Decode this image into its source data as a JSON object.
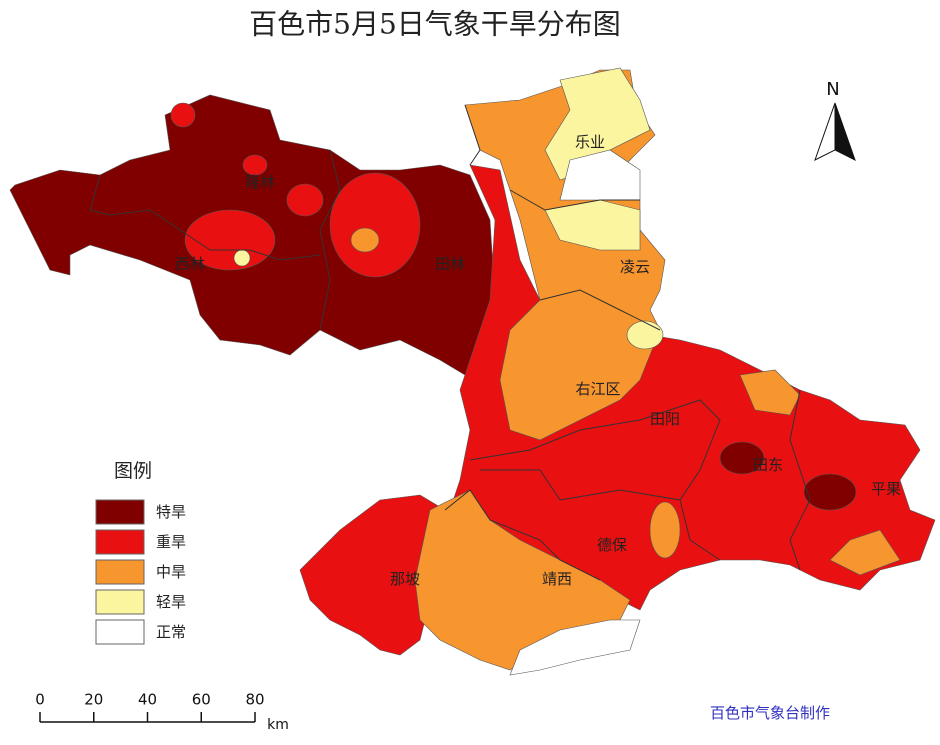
{
  "title": "百色市5月5日气象干旱分布图",
  "legend": {
    "title": "图例",
    "items": [
      {
        "label": "特旱",
        "color": "#800000"
      },
      {
        "label": "重旱",
        "color": "#e81010"
      },
      {
        "label": "中旱",
        "color": "#f7952e"
      },
      {
        "label": "轻旱",
        "color": "#fbf5a0"
      },
      {
        "label": "正常",
        "color": "#ffffff"
      }
    ]
  },
  "places": [
    "隆林",
    "西林",
    "田林",
    "乐业",
    "凌云",
    "右江区",
    "田阳",
    "田东",
    "平果",
    "德保",
    "那坡",
    "靖西"
  ],
  "north": "N",
  "scale_bar": {
    "ticks": [
      0,
      20,
      40,
      60,
      80
    ],
    "unit": "km"
  },
  "credit": "百色市气象台制作"
}
